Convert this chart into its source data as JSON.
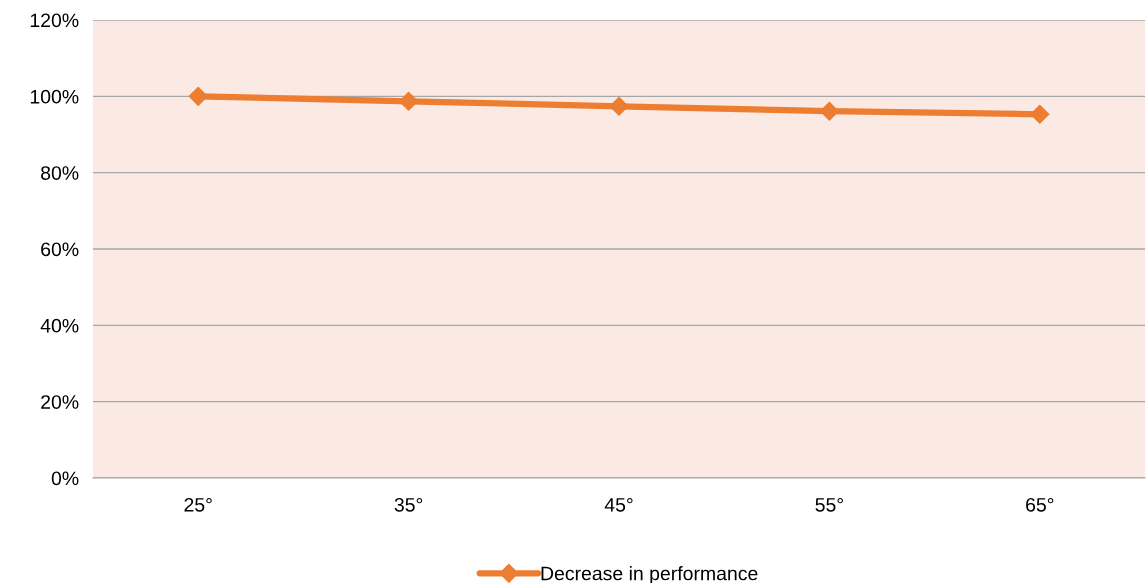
{
  "chart_data": {
    "type": "line",
    "categories": [
      "25°",
      "35°",
      "45°",
      "55°",
      "65°"
    ],
    "series": [
      {
        "name": "Decrease in performance",
        "color": "#ed7d31",
        "values": [
          100,
          98.7,
          97.4,
          96.1,
          95.3
        ]
      }
    ],
    "ylim": [
      0,
      120
    ],
    "yticks": [
      {
        "value": 0,
        "label": "0%"
      },
      {
        "value": 20,
        "label": "20%"
      },
      {
        "value": 40,
        "label": "40%"
      },
      {
        "value": 60,
        "label": "60%"
      },
      {
        "value": 80,
        "label": "80%"
      },
      {
        "value": 100,
        "label": "100%"
      },
      {
        "value": 120,
        "label": "120%"
      }
    ],
    "grid": "y",
    "legend": "bottom",
    "marker": "diamond",
    "line_style": "solid"
  }
}
